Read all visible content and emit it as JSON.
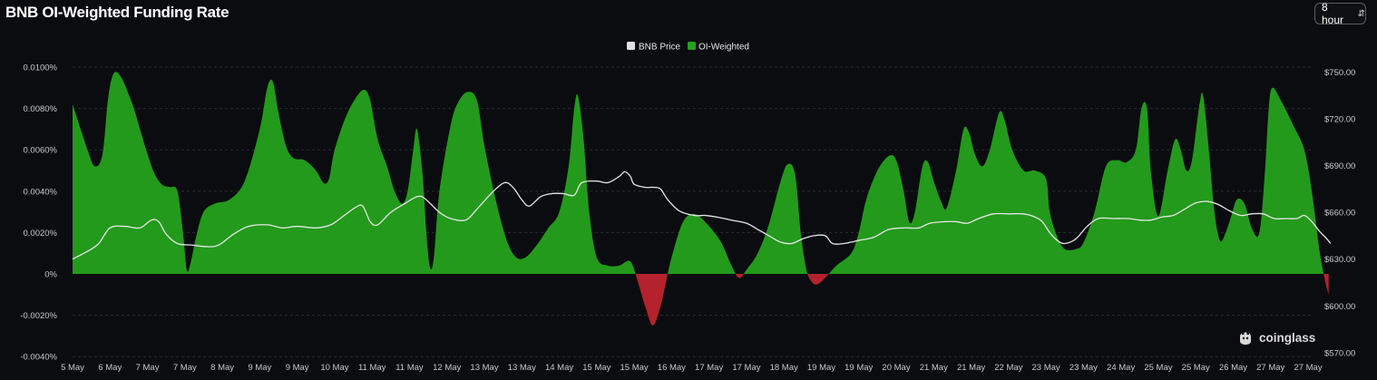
{
  "header": {
    "title": "BNB OI-Weighted Funding Rate",
    "interval_label": "8 hour"
  },
  "legend": {
    "price_label": "BNB Price",
    "funding_label": "OI-Weighted"
  },
  "watermark": {
    "text": "coinglass"
  },
  "colors": {
    "positive": "#239a1c",
    "negative": "#b3222d",
    "price_line": "#e6e6e6",
    "price_legend_swatch": "#e0e0e0",
    "funding_legend_swatch": "#24a31e",
    "grid": "#2a2c33"
  },
  "chart_data": {
    "type": "area",
    "title": "BNB OI-Weighted Funding Rate",
    "x_tick_labels": [
      "5 May",
      "6 May",
      "7 May",
      "7 May",
      "8 May",
      "9 May",
      "9 May",
      "10 May",
      "11 May",
      "11 May",
      "12 May",
      "13 May",
      "13 May",
      "14 May",
      "15 May",
      "15 May",
      "16 May",
      "17 May",
      "17 May",
      "18 May",
      "19 May",
      "19 May",
      "20 May",
      "21 May",
      "21 May",
      "22 May",
      "23 May",
      "23 May",
      "24 May",
      "25 May",
      "25 May",
      "26 May",
      "27 May",
      "27 May"
    ],
    "y_left": {
      "unit": "%",
      "range": [
        -0.004,
        0.0105
      ],
      "ticks": [
        0.01,
        0.008,
        0.006,
        0.004,
        0.002,
        0,
        -0.002,
        -0.004
      ],
      "tick_labels": [
        "0.0100%",
        "0.0080%",
        "0.0060%",
        "0.0040%",
        "0.0020%",
        "0%",
        "-0.0020%",
        "-0.0040%"
      ]
    },
    "y_right": {
      "unit": "$",
      "range": [
        567,
        755
      ],
      "ticks": [
        750,
        720,
        690,
        660,
        630,
        600,
        570
      ],
      "tick_labels": [
        "$750.00",
        "$720.00",
        "$690.00",
        "$660.00",
        "$630.00",
        "$600.00",
        "$570.00"
      ]
    },
    "grid": true,
    "legend_position": "top-center",
    "series": [
      {
        "name": "OI-Weighted",
        "axis": "left",
        "type": "area",
        "points": [
          [
            0.0,
            0.0082
          ],
          [
            0.4,
            0.006
          ],
          [
            0.6,
            0.0052
          ],
          [
            0.8,
            0.0058
          ],
          [
            0.95,
            0.0085
          ],
          [
            1.1,
            0.0097
          ],
          [
            1.3,
            0.0095
          ],
          [
            1.6,
            0.0082
          ],
          [
            1.8,
            0.007
          ],
          [
            2.0,
            0.0058
          ],
          [
            2.2,
            0.0048
          ],
          [
            2.4,
            0.0043
          ],
          [
            2.6,
            0.0042
          ],
          [
            2.8,
            0.004
          ],
          [
            2.95,
            0.002
          ],
          [
            3.05,
            0.0002
          ],
          [
            3.15,
            0.0005
          ],
          [
            3.3,
            0.0018
          ],
          [
            3.5,
            0.003
          ],
          [
            3.8,
            0.0034
          ],
          [
            4.2,
            0.0036
          ],
          [
            4.6,
            0.0045
          ],
          [
            5.0,
            0.007
          ],
          [
            5.2,
            0.009
          ],
          [
            5.35,
            0.0093
          ],
          [
            5.5,
            0.0078
          ],
          [
            5.7,
            0.0062
          ],
          [
            5.9,
            0.0056
          ],
          [
            6.2,
            0.0055
          ],
          [
            6.5,
            0.005
          ],
          [
            6.7,
            0.0044
          ],
          [
            6.85,
            0.0046
          ],
          [
            7.0,
            0.006
          ],
          [
            7.3,
            0.0076
          ],
          [
            7.6,
            0.0086
          ],
          [
            7.8,
            0.0089
          ],
          [
            7.95,
            0.0084
          ],
          [
            8.15,
            0.0065
          ],
          [
            8.4,
            0.0052
          ],
          [
            8.6,
            0.004
          ],
          [
            8.8,
            0.0034
          ],
          [
            8.95,
            0.004
          ],
          [
            9.1,
            0.006
          ],
          [
            9.2,
            0.007
          ],
          [
            9.35,
            0.0048
          ],
          [
            9.45,
            0.002
          ],
          [
            9.55,
            0.0003
          ],
          [
            9.65,
            0.0008
          ],
          [
            9.8,
            0.004
          ],
          [
            10.1,
            0.0072
          ],
          [
            10.3,
            0.0083
          ],
          [
            10.55,
            0.0088
          ],
          [
            10.8,
            0.0084
          ],
          [
            11.0,
            0.0062
          ],
          [
            11.3,
            0.0036
          ],
          [
            11.6,
            0.0016
          ],
          [
            11.85,
            0.0008
          ],
          [
            12.1,
            0.0008
          ],
          [
            12.4,
            0.0014
          ],
          [
            12.7,
            0.0022
          ],
          [
            13.0,
            0.003
          ],
          [
            13.25,
            0.0052
          ],
          [
            13.4,
            0.008
          ],
          [
            13.5,
            0.0086
          ],
          [
            13.65,
            0.0065
          ],
          [
            13.8,
            0.003
          ],
          [
            14.0,
            0.0008
          ],
          [
            14.3,
            0.0004
          ],
          [
            14.6,
            0.0004
          ],
          [
            14.9,
            0.0006
          ],
          [
            15.1,
            -0.0004
          ],
          [
            15.3,
            -0.0016
          ],
          [
            15.5,
            -0.0025
          ],
          [
            15.7,
            -0.0016
          ],
          [
            15.85,
            -0.0004
          ],
          [
            16.0,
            0.0008
          ],
          [
            16.3,
            0.0025
          ],
          [
            16.6,
            0.0029
          ],
          [
            16.9,
            0.0025
          ],
          [
            17.3,
            0.0016
          ],
          [
            17.6,
            0.0004
          ],
          [
            17.8,
            -0.0002
          ],
          [
            18.0,
            0.0002
          ],
          [
            18.3,
            0.001
          ],
          [
            18.6,
            0.0024
          ],
          [
            18.9,
            0.0044
          ],
          [
            19.1,
            0.0053
          ],
          [
            19.3,
            0.0048
          ],
          [
            19.45,
            0.002
          ],
          [
            19.6,
            0.0002
          ],
          [
            19.75,
            -0.0004
          ],
          [
            19.9,
            -0.0005
          ],
          [
            20.1,
            -0.0002
          ],
          [
            20.4,
            0.0004
          ],
          [
            20.8,
            0.001
          ],
          [
            21.0,
            0.002
          ],
          [
            21.2,
            0.0036
          ],
          [
            21.5,
            0.005
          ],
          [
            21.8,
            0.0057
          ],
          [
            22.0,
            0.0055
          ],
          [
            22.2,
            0.004
          ],
          [
            22.35,
            0.0025
          ],
          [
            22.5,
            0.003
          ],
          [
            22.7,
            0.0052
          ],
          [
            22.85,
            0.0054
          ],
          [
            23.0,
            0.0045
          ],
          [
            23.2,
            0.0035
          ],
          [
            23.35,
            0.0032
          ],
          [
            23.6,
            0.005
          ],
          [
            23.8,
            0.007
          ],
          [
            23.95,
            0.0068
          ],
          [
            24.1,
            0.0058
          ],
          [
            24.3,
            0.0052
          ],
          [
            24.5,
            0.006
          ],
          [
            24.75,
            0.0078
          ],
          [
            24.9,
            0.0074
          ],
          [
            25.1,
            0.006
          ],
          [
            25.4,
            0.005
          ],
          [
            25.7,
            0.005
          ],
          [
            26.0,
            0.0046
          ],
          [
            26.1,
            0.003
          ],
          [
            26.3,
            0.0018
          ],
          [
            26.5,
            0.0012
          ],
          [
            26.8,
            0.0012
          ],
          [
            27.0,
            0.0015
          ],
          [
            27.3,
            0.003
          ],
          [
            27.6,
            0.0052
          ],
          [
            27.9,
            0.0055
          ],
          [
            28.15,
            0.0054
          ],
          [
            28.4,
            0.006
          ],
          [
            28.55,
            0.008
          ],
          [
            28.7,
            0.008
          ],
          [
            28.8,
            0.005
          ],
          [
            29.0,
            0.0028
          ],
          [
            29.25,
            0.005
          ],
          [
            29.45,
            0.0065
          ],
          [
            29.6,
            0.006
          ],
          [
            29.75,
            0.005
          ],
          [
            29.9,
            0.0055
          ],
          [
            30.1,
            0.0082
          ],
          [
            30.2,
            0.0086
          ],
          [
            30.35,
            0.006
          ],
          [
            30.5,
            0.003
          ],
          [
            30.65,
            0.0016
          ],
          [
            30.8,
            0.002
          ],
          [
            30.95,
            0.0028
          ],
          [
            31.1,
            0.0036
          ],
          [
            31.3,
            0.0034
          ],
          [
            31.5,
            0.0022
          ],
          [
            31.7,
            0.002
          ],
          [
            31.85,
            0.005
          ],
          [
            31.95,
            0.008
          ],
          [
            32.05,
            0.009
          ],
          [
            32.3,
            0.0083
          ],
          [
            32.6,
            0.0072
          ],
          [
            32.9,
            0.006
          ],
          [
            33.1,
            0.004
          ],
          [
            33.3,
            0.0012
          ],
          [
            33.45,
            -0.0003
          ],
          [
            33.55,
            -0.001
          ]
        ]
      },
      {
        "name": "BNB Price",
        "axis": "right",
        "type": "line",
        "points": [
          [
            0.0,
            630
          ],
          [
            0.4,
            635
          ],
          [
            0.7,
            640
          ],
          [
            1.0,
            650
          ],
          [
            1.4,
            651
          ],
          [
            1.8,
            650
          ],
          [
            2.1,
            655
          ],
          [
            2.3,
            654
          ],
          [
            2.5,
            646
          ],
          [
            2.8,
            640
          ],
          [
            3.2,
            639
          ],
          [
            3.6,
            638
          ],
          [
            3.9,
            639
          ],
          [
            4.3,
            646
          ],
          [
            4.7,
            651
          ],
          [
            5.2,
            652
          ],
          [
            5.6,
            650
          ],
          [
            6.0,
            651
          ],
          [
            6.5,
            650
          ],
          [
            6.9,
            652
          ],
          [
            7.2,
            657
          ],
          [
            7.55,
            663
          ],
          [
            7.75,
            664
          ],
          [
            7.95,
            654
          ],
          [
            8.15,
            652
          ],
          [
            8.5,
            660
          ],
          [
            8.9,
            666
          ],
          [
            9.2,
            670
          ],
          [
            9.4,
            669
          ],
          [
            9.8,
            660
          ],
          [
            10.1,
            656
          ],
          [
            10.5,
            655
          ],
          [
            10.8,
            662
          ],
          [
            11.1,
            670
          ],
          [
            11.4,
            677
          ],
          [
            11.6,
            679
          ],
          [
            11.8,
            675
          ],
          [
            12.0,
            668
          ],
          [
            12.2,
            664
          ],
          [
            12.5,
            670
          ],
          [
            12.8,
            672
          ],
          [
            13.1,
            672
          ],
          [
            13.4,
            671
          ],
          [
            13.6,
            679
          ],
          [
            14.0,
            680
          ],
          [
            14.3,
            679
          ],
          [
            14.6,
            683
          ],
          [
            14.75,
            686
          ],
          [
            14.9,
            683
          ],
          [
            15.0,
            678
          ],
          [
            15.3,
            676
          ],
          [
            15.5,
            676
          ],
          [
            15.7,
            675
          ],
          [
            15.9,
            668
          ],
          [
            16.2,
            661
          ],
          [
            16.6,
            658
          ],
          [
            16.9,
            658
          ],
          [
            17.2,
            657
          ],
          [
            17.6,
            655
          ],
          [
            18.0,
            653
          ],
          [
            18.3,
            649
          ],
          [
            18.6,
            645
          ],
          [
            18.9,
            641
          ],
          [
            19.2,
            640
          ],
          [
            19.5,
            643
          ],
          [
            19.8,
            645
          ],
          [
            20.1,
            645
          ],
          [
            20.3,
            640
          ],
          [
            20.6,
            640
          ],
          [
            21.0,
            642
          ],
          [
            21.4,
            644
          ],
          [
            21.8,
            649
          ],
          [
            22.2,
            650
          ],
          [
            22.6,
            650
          ],
          [
            22.9,
            653
          ],
          [
            23.3,
            654
          ],
          [
            23.6,
            654
          ],
          [
            23.9,
            653
          ],
          [
            24.2,
            656
          ],
          [
            24.6,
            659
          ],
          [
            25.0,
            659
          ],
          [
            25.4,
            659
          ],
          [
            25.7,
            657
          ],
          [
            25.9,
            654
          ],
          [
            26.1,
            647
          ],
          [
            26.3,
            642
          ],
          [
            26.5,
            640
          ],
          [
            26.8,
            643
          ],
          [
            27.1,
            651
          ],
          [
            27.4,
            656
          ],
          [
            27.8,
            656
          ],
          [
            28.2,
            656
          ],
          [
            28.5,
            655
          ],
          [
            28.8,
            655
          ],
          [
            29.1,
            657
          ],
          [
            29.4,
            658
          ],
          [
            29.7,
            662
          ],
          [
            30.0,
            666
          ],
          [
            30.3,
            667
          ],
          [
            30.6,
            665
          ],
          [
            30.9,
            661
          ],
          [
            31.2,
            658
          ],
          [
            31.5,
            659
          ],
          [
            31.8,
            659
          ],
          [
            32.1,
            656
          ],
          [
            32.4,
            656
          ],
          [
            32.7,
            656
          ],
          [
            32.9,
            658
          ],
          [
            33.1,
            654
          ],
          [
            33.3,
            648
          ],
          [
            33.5,
            643
          ],
          [
            33.6,
            640
          ]
        ]
      }
    ]
  }
}
